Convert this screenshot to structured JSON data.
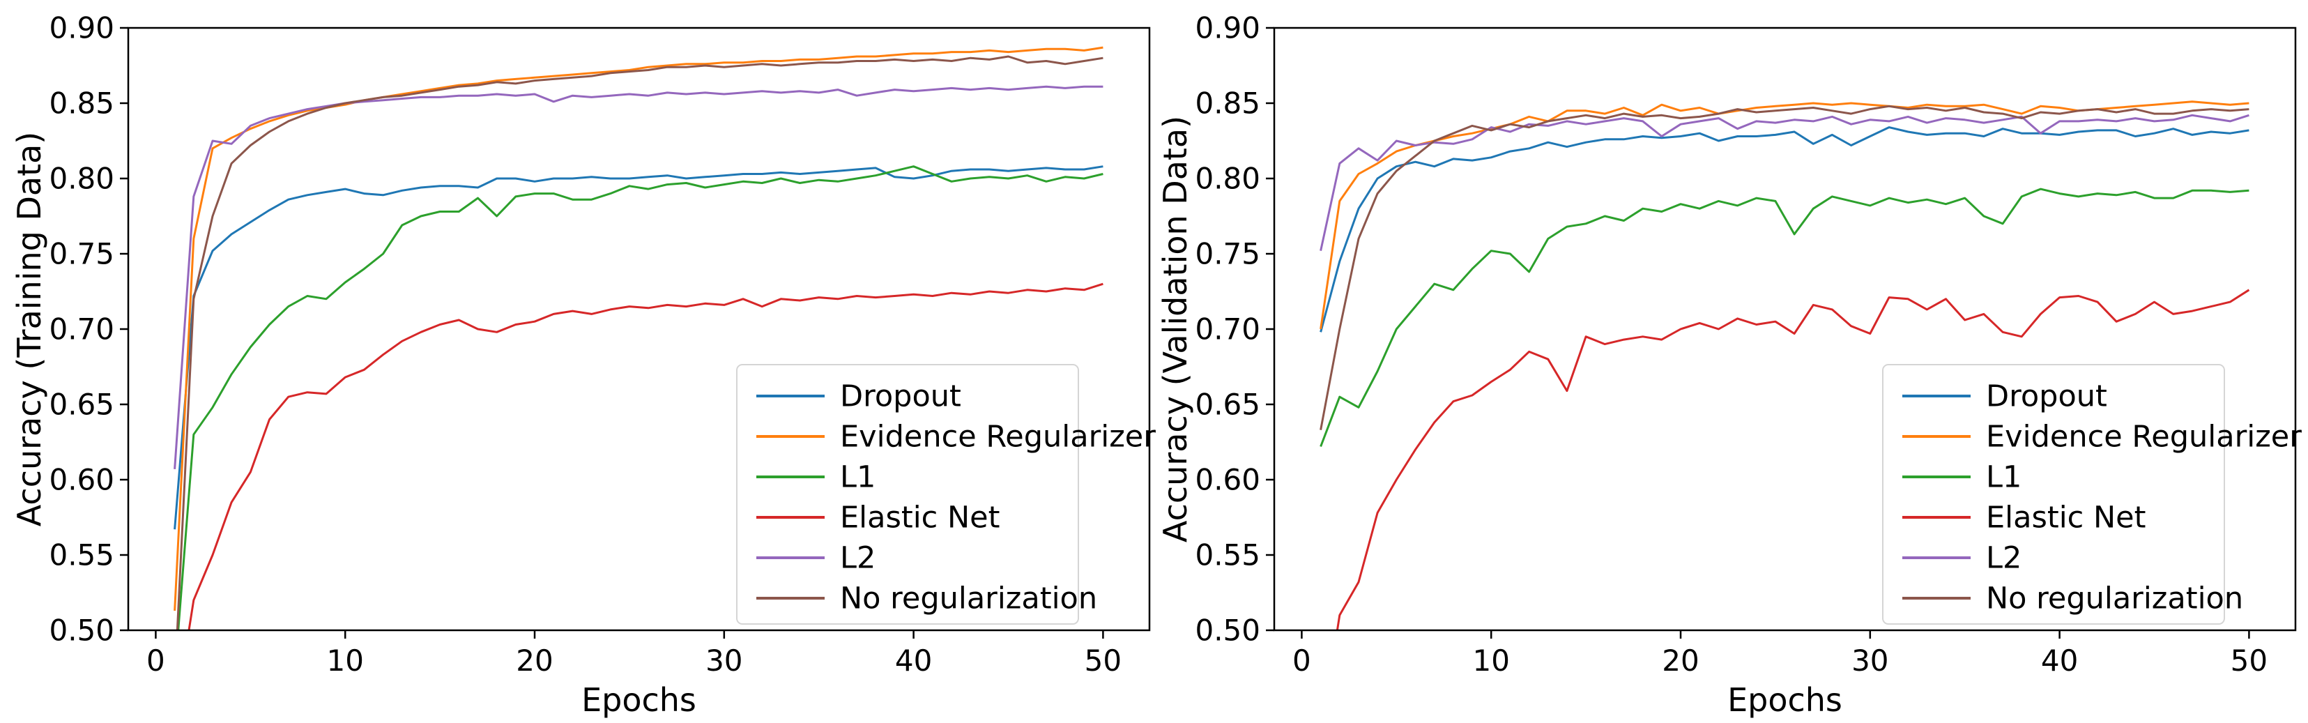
{
  "figure": {
    "background": "#ffffff",
    "spine_color": "#000000",
    "legend_border_color": "#d5d5d5",
    "legend_background": "#ffffff"
  },
  "chart_data": [
    {
      "id": "training",
      "type": "line",
      "title": "",
      "xlabel": "Epochs",
      "ylabel": "Accuracy (Training Data)",
      "x_start": 1,
      "xlim": [
        -1.45,
        52.45
      ],
      "ylim": [
        0.5,
        0.9
      ],
      "xticks": [
        0,
        10,
        20,
        30,
        40,
        50
      ],
      "ytick_labels": [
        "0.50",
        "0.55",
        "0.60",
        "0.65",
        "0.70",
        "0.75",
        "0.80",
        "0.85",
        "0.90"
      ],
      "grid": false,
      "legend_position": "lower right",
      "series": [
        {
          "name": "Dropout",
          "color": "#1f77b4",
          "values": [
            0.567,
            0.722,
            0.752,
            0.763,
            0.771,
            0.779,
            0.786,
            0.789,
            0.791,
            0.793,
            0.79,
            0.789,
            0.792,
            0.794,
            0.795,
            0.795,
            0.794,
            0.8,
            0.8,
            0.798,
            0.8,
            0.8,
            0.801,
            0.8,
            0.8,
            0.801,
            0.802,
            0.8,
            0.801,
            0.802,
            0.803,
            0.803,
            0.804,
            0.803,
            0.804,
            0.805,
            0.806,
            0.807,
            0.801,
            0.8,
            0.802,
            0.805,
            0.806,
            0.806,
            0.805,
            0.806,
            0.807,
            0.806,
            0.806,
            0.808
          ]
        },
        {
          "name": "Evidence Regularizer",
          "color": "#ff7f0e",
          "values": [
            0.513,
            0.76,
            0.82,
            0.827,
            0.833,
            0.838,
            0.842,
            0.845,
            0.847,
            0.849,
            0.852,
            0.854,
            0.856,
            0.858,
            0.86,
            0.862,
            0.863,
            0.865,
            0.866,
            0.867,
            0.868,
            0.869,
            0.87,
            0.871,
            0.872,
            0.874,
            0.875,
            0.876,
            0.876,
            0.877,
            0.877,
            0.878,
            0.878,
            0.879,
            0.879,
            0.88,
            0.881,
            0.881,
            0.882,
            0.883,
            0.883,
            0.884,
            0.884,
            0.885,
            0.884,
            0.885,
            0.886,
            0.886,
            0.885,
            0.887
          ]
        },
        {
          "name": "L1",
          "color": "#2ca02c",
          "values": [
            0.47,
            0.63,
            0.648,
            0.67,
            0.688,
            0.703,
            0.715,
            0.722,
            0.72,
            0.731,
            0.74,
            0.75,
            0.769,
            0.775,
            0.778,
            0.778,
            0.787,
            0.775,
            0.788,
            0.79,
            0.79,
            0.786,
            0.786,
            0.79,
            0.795,
            0.793,
            0.796,
            0.797,
            0.794,
            0.796,
            0.798,
            0.797,
            0.8,
            0.797,
            0.799,
            0.798,
            0.8,
            0.802,
            0.805,
            0.808,
            0.803,
            0.798,
            0.8,
            0.801,
            0.8,
            0.802,
            0.798,
            0.801,
            0.8,
            0.803
          ]
        },
        {
          "name": "Elastic Net",
          "color": "#d62728",
          "values": [
            0.44,
            0.52,
            0.55,
            0.585,
            0.605,
            0.64,
            0.655,
            0.658,
            0.657,
            0.668,
            0.673,
            0.683,
            0.692,
            0.698,
            0.703,
            0.706,
            0.7,
            0.698,
            0.703,
            0.705,
            0.71,
            0.712,
            0.71,
            0.713,
            0.715,
            0.714,
            0.716,
            0.715,
            0.717,
            0.716,
            0.72,
            0.715,
            0.72,
            0.719,
            0.721,
            0.72,
            0.722,
            0.721,
            0.722,
            0.723,
            0.722,
            0.724,
            0.723,
            0.725,
            0.724,
            0.726,
            0.725,
            0.727,
            0.726,
            0.73
          ]
        },
        {
          "name": "L2",
          "color": "#9467bd",
          "values": [
            0.607,
            0.788,
            0.825,
            0.823,
            0.835,
            0.84,
            0.843,
            0.846,
            0.848,
            0.85,
            0.851,
            0.852,
            0.853,
            0.854,
            0.854,
            0.855,
            0.855,
            0.856,
            0.855,
            0.856,
            0.851,
            0.855,
            0.854,
            0.855,
            0.856,
            0.855,
            0.857,
            0.856,
            0.857,
            0.856,
            0.857,
            0.858,
            0.857,
            0.858,
            0.857,
            0.859,
            0.855,
            0.857,
            0.859,
            0.858,
            0.859,
            0.86,
            0.859,
            0.86,
            0.859,
            0.86,
            0.861,
            0.86,
            0.861,
            0.861
          ]
        },
        {
          "name": "No regularization",
          "color": "#8c564b",
          "values": [
            0.465,
            0.72,
            0.775,
            0.81,
            0.822,
            0.831,
            0.838,
            0.843,
            0.847,
            0.85,
            0.852,
            0.854,
            0.855,
            0.857,
            0.859,
            0.861,
            0.862,
            0.864,
            0.863,
            0.865,
            0.866,
            0.867,
            0.868,
            0.87,
            0.871,
            0.872,
            0.874,
            0.874,
            0.875,
            0.874,
            0.875,
            0.876,
            0.875,
            0.876,
            0.877,
            0.877,
            0.878,
            0.878,
            0.879,
            0.878,
            0.879,
            0.878,
            0.88,
            0.879,
            0.881,
            0.877,
            0.878,
            0.876,
            0.878,
            0.88
          ]
        }
      ]
    },
    {
      "id": "validation",
      "type": "line",
      "title": "",
      "xlabel": "Epochs",
      "ylabel": "Accuracy (Validation Data)",
      "x_start": 1,
      "xlim": [
        -1.45,
        52.45
      ],
      "ylim": [
        0.5,
        0.9
      ],
      "xticks": [
        0,
        10,
        20,
        30,
        40,
        50
      ],
      "ytick_labels": [
        "0.50",
        "0.55",
        "0.60",
        "0.65",
        "0.70",
        "0.75",
        "0.80",
        "0.85",
        "0.90"
      ],
      "grid": false,
      "legend_position": "lower right",
      "series": [
        {
          "name": "Dropout",
          "color": "#1f77b4",
          "values": [
            0.698,
            0.745,
            0.78,
            0.8,
            0.808,
            0.811,
            0.808,
            0.813,
            0.812,
            0.814,
            0.818,
            0.82,
            0.824,
            0.821,
            0.824,
            0.826,
            0.826,
            0.828,
            0.827,
            0.828,
            0.83,
            0.825,
            0.828,
            0.828,
            0.829,
            0.831,
            0.823,
            0.829,
            0.822,
            0.828,
            0.834,
            0.831,
            0.829,
            0.83,
            0.83,
            0.828,
            0.833,
            0.83,
            0.83,
            0.829,
            0.831,
            0.832,
            0.832,
            0.828,
            0.83,
            0.833,
            0.829,
            0.831,
            0.83,
            0.832
          ]
        },
        {
          "name": "Evidence Regularizer",
          "color": "#ff7f0e",
          "values": [
            0.7,
            0.785,
            0.803,
            0.81,
            0.818,
            0.822,
            0.825,
            0.828,
            0.83,
            0.833,
            0.836,
            0.841,
            0.838,
            0.845,
            0.845,
            0.843,
            0.847,
            0.842,
            0.849,
            0.845,
            0.847,
            0.843,
            0.845,
            0.847,
            0.848,
            0.849,
            0.85,
            0.849,
            0.85,
            0.849,
            0.848,
            0.847,
            0.849,
            0.848,
            0.848,
            0.849,
            0.846,
            0.843,
            0.848,
            0.847,
            0.845,
            0.846,
            0.847,
            0.848,
            0.849,
            0.85,
            0.851,
            0.85,
            0.849,
            0.85
          ]
        },
        {
          "name": "L1",
          "color": "#2ca02c",
          "values": [
            0.622,
            0.655,
            0.648,
            0.672,
            0.7,
            0.715,
            0.73,
            0.726,
            0.74,
            0.752,
            0.75,
            0.738,
            0.76,
            0.768,
            0.77,
            0.775,
            0.772,
            0.78,
            0.778,
            0.783,
            0.78,
            0.785,
            0.782,
            0.787,
            0.785,
            0.763,
            0.78,
            0.788,
            0.785,
            0.782,
            0.787,
            0.784,
            0.786,
            0.783,
            0.787,
            0.775,
            0.77,
            0.788,
            0.793,
            0.79,
            0.788,
            0.79,
            0.789,
            0.791,
            0.787,
            0.787,
            0.792,
            0.792,
            0.791,
            0.792
          ]
        },
        {
          "name": "Elastic Net",
          "color": "#d62728",
          "values": [
            0.43,
            0.51,
            0.532,
            0.578,
            0.6,
            0.62,
            0.638,
            0.652,
            0.656,
            0.665,
            0.673,
            0.685,
            0.68,
            0.659,
            0.695,
            0.69,
            0.693,
            0.695,
            0.693,
            0.7,
            0.704,
            0.7,
            0.707,
            0.703,
            0.705,
            0.697,
            0.716,
            0.713,
            0.702,
            0.697,
            0.721,
            0.72,
            0.713,
            0.72,
            0.706,
            0.71,
            0.698,
            0.695,
            0.71,
            0.721,
            0.722,
            0.718,
            0.705,
            0.71,
            0.718,
            0.71,
            0.712,
            0.715,
            0.718,
            0.726
          ]
        },
        {
          "name": "L2",
          "color": "#9467bd",
          "values": [
            0.752,
            0.81,
            0.82,
            0.812,
            0.825,
            0.822,
            0.824,
            0.823,
            0.826,
            0.834,
            0.831,
            0.836,
            0.835,
            0.838,
            0.836,
            0.838,
            0.84,
            0.838,
            0.828,
            0.836,
            0.838,
            0.84,
            0.833,
            0.838,
            0.837,
            0.839,
            0.838,
            0.841,
            0.836,
            0.839,
            0.838,
            0.841,
            0.837,
            0.84,
            0.839,
            0.837,
            0.839,
            0.841,
            0.83,
            0.838,
            0.838,
            0.839,
            0.838,
            0.84,
            0.838,
            0.839,
            0.842,
            0.84,
            0.838,
            0.842
          ]
        },
        {
          "name": "No regularization",
          "color": "#8c564b",
          "values": [
            0.633,
            0.7,
            0.76,
            0.79,
            0.805,
            0.815,
            0.825,
            0.83,
            0.835,
            0.832,
            0.836,
            0.834,
            0.838,
            0.84,
            0.842,
            0.84,
            0.843,
            0.841,
            0.842,
            0.84,
            0.841,
            0.843,
            0.846,
            0.844,
            0.845,
            0.846,
            0.847,
            0.845,
            0.843,
            0.846,
            0.848,
            0.846,
            0.847,
            0.845,
            0.847,
            0.844,
            0.843,
            0.84,
            0.844,
            0.843,
            0.845,
            0.846,
            0.844,
            0.846,
            0.843,
            0.843,
            0.845,
            0.846,
            0.845,
            0.846
          ]
        }
      ]
    }
  ]
}
